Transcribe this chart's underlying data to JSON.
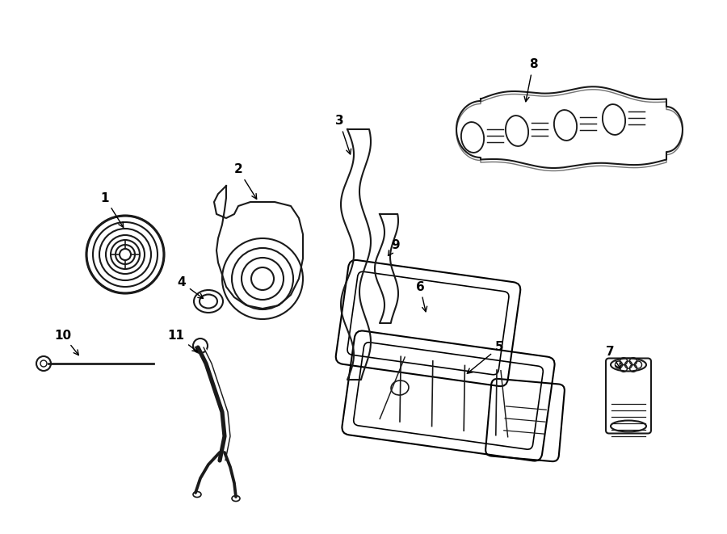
{
  "bg_color": "#ffffff",
  "line_color": "#1a1a1a",
  "label_color": "#000000",
  "fig_width": 9.0,
  "fig_height": 6.61,
  "dpi": 100
}
